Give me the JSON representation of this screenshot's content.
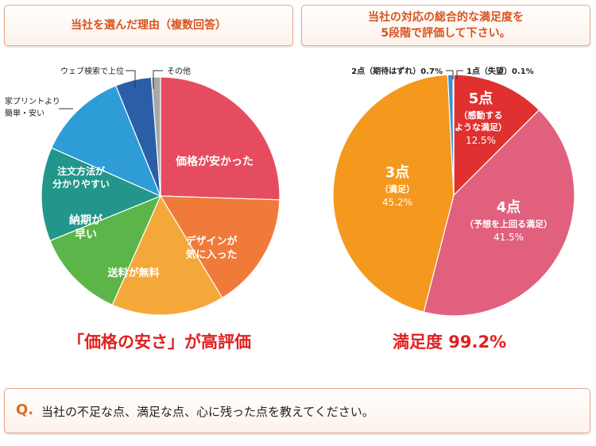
{
  "left": {
    "title": "当社を選んだ理由（複数回答）",
    "caption": "「価格の安さ」が高評価"
  },
  "right": {
    "title_line1": "当社の対応の総合的な満足度を",
    "title_line2": "5段階で評価して下さい。",
    "caption": "満足度 99.2%"
  },
  "question": {
    "mark": "Q.",
    "text": "当社の不足な点、満足な点、心に残った点を教えてください。"
  },
  "chart_data": [
    {
      "type": "pie",
      "title": "当社を選んだ理由（複数回答）",
      "slices": [
        {
          "label": "価格が安かった",
          "value": 25.0,
          "color": "#e64c5f",
          "placement": "inside"
        },
        {
          "label": "デザインが\n気に入った",
          "value": 15.5,
          "color": "#f07a3a",
          "placement": "inside"
        },
        {
          "label": "送料が無料",
          "value": 15.0,
          "color": "#f5a83a",
          "placement": "inside"
        },
        {
          "label": "納期が\n早い",
          "value": 12.0,
          "color": "#5cb548",
          "placement": "inside"
        },
        {
          "label": "注文方法が\n分かりやすい",
          "value": 12.5,
          "color": "#22968a",
          "placement": "inside"
        },
        {
          "label": "家プリントより\n簡単・安い",
          "value": 12.0,
          "color": "#2e9cd6",
          "placement": "outside"
        },
        {
          "label": "ウェブ検索で上位",
          "value": 4.8,
          "color": "#2a5fa8",
          "placement": "outside"
        },
        {
          "label": "その他",
          "value": 1.2,
          "color": "#a8a8a8",
          "placement": "outside"
        }
      ]
    },
    {
      "type": "pie",
      "title": "当社の対応の総合的な満足度を5段階で評価して下さい。",
      "slices": [
        {
          "label": "5点",
          "sublabel": "（感動する\nような満足）",
          "percent": "12.5%",
          "value": 12.5,
          "color": "#e03030",
          "placement": "inside"
        },
        {
          "label": "4点",
          "sublabel": "（予想を上回る満足）",
          "percent": "41.5%",
          "value": 41.5,
          "color": "#e0607e",
          "placement": "inside"
        },
        {
          "label": "3点",
          "sublabel": "（満足）",
          "percent": "45.2%",
          "value": 45.2,
          "color": "#f5981e",
          "placement": "inside"
        },
        {
          "label": "2点（期待はずれ）0.7%",
          "value": 0.7,
          "color": "#3d8fd6",
          "placement": "outside"
        },
        {
          "label": "1点（失望）0.1%",
          "value": 0.1,
          "color": "#1a3a7a",
          "placement": "outside"
        }
      ]
    }
  ]
}
